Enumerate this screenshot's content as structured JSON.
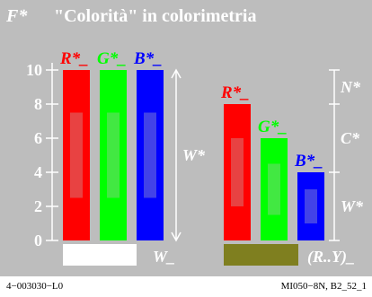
{
  "chart_data": {
    "type": "bar",
    "title_symbol": "F*",
    "title": "\"Colorità\" in colorimetria",
    "ylim": [
      0,
      10
    ],
    "yticks": [
      "0",
      "2",
      "4",
      "6",
      "8",
      "10"
    ],
    "groups": [
      {
        "label": "W_",
        "bars": [
          {
            "name": "R*_",
            "value": 10,
            "color": "#ff0000",
            "inner_from": 2.5,
            "inner_to": 7.5
          },
          {
            "name": "G*_",
            "value": 10,
            "color": "#00ff00",
            "inner_from": 2.5,
            "inner_to": 7.5
          },
          {
            "name": "B*_",
            "value": 10,
            "color": "#0000ff",
            "inner_from": 2.5,
            "inner_to": 7.5
          }
        ],
        "swatch_color": "#ffffff"
      },
      {
        "label": "(R..Y)_",
        "bars": [
          {
            "name": "R*_",
            "value": 8,
            "color": "#ff0000",
            "inner_from": 2,
            "inner_to": 6
          },
          {
            "name": "G*_",
            "value": 6,
            "color": "#00ff00",
            "inner_from": 1.5,
            "inner_to": 4.5
          },
          {
            "name": "B*_",
            "value": 4,
            "color": "#0000ff",
            "inner_from": 1,
            "inner_to": 3
          }
        ],
        "swatch_color": "#7f7f1f"
      }
    ],
    "annotations": {
      "left_range": "W*",
      "right_top": "N*",
      "right_middle": "C*",
      "right_bottom": "W*"
    },
    "right_segments": {
      "top": [
        8,
        10
      ],
      "middle": [
        4,
        8
      ],
      "bottom": [
        0,
        4
      ]
    },
    "background_color": "#bdbdbd"
  },
  "footer": {
    "left": "4−003030−L0",
    "right": "MI050−8N, B2_52_1"
  }
}
